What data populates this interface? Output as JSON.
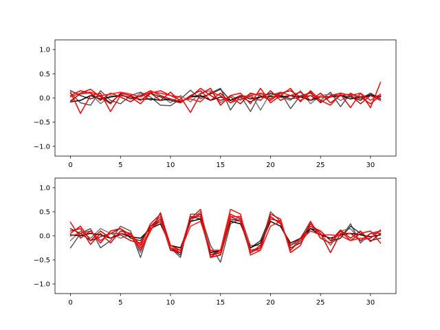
{
  "chart_data": [
    {
      "type": "line",
      "xlim": [
        -1.55,
        32.55
      ],
      "ylim": [
        -1.2,
        1.2
      ],
      "x_ticks": [
        0,
        5,
        10,
        15,
        20,
        25,
        30
      ],
      "y_ticks": [
        -1.0,
        -0.5,
        0.0,
        0.5,
        1.0
      ],
      "x_tick_labels": [
        "0",
        "5",
        "10",
        "15",
        "20",
        "25",
        "30"
      ],
      "y_tick_labels": [
        "−1.0",
        "−0.5",
        "0.0",
        "0.5",
        "1.0"
      ],
      "grid": false,
      "x": [
        0,
        1,
        2,
        3,
        4,
        5,
        6,
        7,
        8,
        9,
        10,
        11,
        12,
        13,
        14,
        15,
        16,
        17,
        18,
        19,
        20,
        21,
        22,
        23,
        24,
        25,
        26,
        27,
        28,
        29,
        30,
        31
      ],
      "series": [
        {
          "color": "#555555",
          "values": [
            0.1,
            -0.1,
            -0.15,
            0.15,
            -0.05,
            -0.12,
            0.05,
            0.12,
            0.02,
            -0.15,
            -0.16,
            -0.02,
            0.16,
            -0.02,
            0.1,
            0.2,
            -0.25,
            0.05,
            -0.28,
            0.1,
            0.05,
            0.12,
            -0.22,
            0.05,
            0.1,
            -0.05,
            0.12,
            -0.18,
            0.1,
            -0.02,
            0.1,
            -0.02
          ]
        },
        {
          "color": "#777777",
          "values": [
            -0.05,
            0.08,
            0.1,
            -0.12,
            0.05,
            0.02,
            -0.08,
            0.1,
            -0.05,
            0.05,
            -0.1,
            0.05,
            -0.08,
            0.1,
            0.15,
            -0.1,
            0.05,
            -0.05,
            0.1,
            -0.25,
            0.1,
            0.02,
            -0.05,
            0.15,
            -0.12,
            0.05,
            0.08,
            -0.05,
            0.05,
            -0.02,
            0.05,
            0.02
          ]
        },
        {
          "color": "#333333",
          "values": [
            0.15,
            0.05,
            -0.02,
            0.05,
            -0.1,
            0.08,
            -0.02,
            0.05,
            0.1,
            0.02,
            -0.05,
            -0.1,
            0.05,
            0.02,
            0.08,
            0.18,
            -0.05,
            0.02,
            -0.08,
            0.02,
            0.1,
            0.05,
            -0.02,
            0.02,
            0.05,
            -0.08,
            0.02,
            0.05,
            0.02,
            -0.05,
            0.08,
            -0.02
          ]
        },
        {
          "color": "#000000",
          "values": [
            -0.08,
            -0.05,
            0.05,
            -0.02,
            0.02,
            0.05,
            0.02,
            -0.03,
            -0.02,
            -0.05,
            -0.02,
            -0.08,
            0.02,
            0.05,
            -0.05,
            0.02,
            -0.05,
            0.05,
            -0.02,
            0.02,
            0.03,
            0.02,
            0.05,
            0.02,
            -0.05,
            0.02,
            0.03,
            0.05,
            -0.02,
            0.02,
            0.05,
            0.03
          ]
        },
        {
          "color": "#ff0000",
          "values": [
            0.12,
            -0.32,
            0.05,
            0.1,
            -0.28,
            0.05,
            0.02,
            -0.12,
            0.1,
            0.15,
            0.05,
            0.02,
            -0.3,
            0.08,
            0.2,
            -0.15,
            0.05,
            0.1,
            -0.12,
            0.2,
            -0.1,
            0.05,
            0.2,
            -0.08,
            0.15,
            -0.05,
            -0.15,
            0.08,
            -0.2,
            0.1,
            -0.2,
            0.32
          ]
        },
        {
          "color": "#ee0000",
          "values": [
            0.05,
            0.15,
            0.1,
            -0.05,
            0.1,
            0.02,
            -0.08,
            0.05,
            0.15,
            0.05,
            -0.02,
            -0.1,
            0.05,
            0.15,
            -0.05,
            0.1,
            -0.1,
            0.05,
            0.02,
            -0.05,
            0.15,
            -0.05,
            0.05,
            0.12,
            -0.05,
            0.1,
            -0.1,
            0.05,
            0.08,
            0.02,
            -0.12,
            0.05
          ]
        },
        {
          "color": "#dd0000",
          "values": [
            -0.08,
            0.1,
            0.18,
            0.02,
            -0.12,
            0.1,
            0.05,
            -0.05,
            0.1,
            -0.05,
            0.12,
            -0.08,
            0.02,
            0.2,
            0.05,
            -0.05,
            0.02,
            -0.12,
            0.1,
            0.05,
            -0.05,
            0.1,
            0.15,
            0.02,
            0.12,
            -0.1,
            0.05,
            0.1,
            0.05,
            -0.12,
            0.05,
            -0.05
          ]
        },
        {
          "color": "#ff1111",
          "values": [
            0.02,
            0.1,
            0.12,
            0.05,
            0.08,
            0.12,
            0.08,
            0.02,
            0.12,
            0.1,
            0.05,
            -0.05,
            -0.02,
            -0.08,
            0.12,
            0.05,
            -0.1,
            -0.02,
            0.05,
            0.1,
            -0.02,
            0.12,
            0.05,
            -0.05,
            0.05,
            0.02,
            0.02,
            0.1,
            0.05,
            0.1,
            -0.05,
            0.08
          ]
        }
      ]
    },
    {
      "type": "line",
      "xlim": [
        -1.55,
        32.55
      ],
      "ylim": [
        -1.2,
        1.2
      ],
      "x_ticks": [
        0,
        5,
        10,
        15,
        20,
        25,
        30
      ],
      "y_ticks": [
        -1.0,
        -0.5,
        0.0,
        0.5,
        1.0
      ],
      "x_tick_labels": [
        "0",
        "5",
        "10",
        "15",
        "20",
        "25",
        "30"
      ],
      "y_tick_labels": [
        "−1.0",
        "−0.5",
        "0.0",
        "0.5",
        "1.0"
      ],
      "grid": false,
      "x": [
        0,
        1,
        2,
        3,
        4,
        5,
        6,
        7,
        8,
        9,
        10,
        11,
        12,
        13,
        14,
        15,
        16,
        17,
        18,
        19,
        20,
        21,
        22,
        23,
        24,
        25,
        26,
        27,
        28,
        29,
        30,
        31
      ],
      "series": [
        {
          "color": "#555555",
          "values": [
            -0.25,
            0.05,
            0.15,
            -0.25,
            -0.1,
            0.2,
            0.1,
            -0.45,
            0.2,
            0.4,
            -0.25,
            -0.45,
            0.45,
            0.45,
            -0.2,
            -0.55,
            0.25,
            0.35,
            -0.3,
            -0.25,
            0.5,
            0.3,
            -0.3,
            -0.05,
            0.3,
            -0.05,
            -0.15,
            -0.05,
            0.25,
            -0.15,
            0.05,
            0.05
          ]
        },
        {
          "color": "#777777",
          "values": [
            -0.1,
            0.1,
            -0.05,
            0.15,
            0.05,
            -0.05,
            0.02,
            -0.35,
            0.15,
            0.35,
            -0.3,
            -0.3,
            0.3,
            0.5,
            -0.3,
            -0.4,
            0.3,
            0.4,
            -0.2,
            -0.2,
            0.3,
            0.2,
            -0.2,
            -0.1,
            0.2,
            0.05,
            -0.2,
            0.1,
            0.15,
            -0.1,
            -0.05,
            0.1
          ]
        },
        {
          "color": "#333333",
          "values": [
            0.15,
            0.05,
            -0.1,
            -0.02,
            0.05,
            0.15,
            -0.05,
            -0.1,
            0.2,
            0.3,
            -0.25,
            -0.4,
            0.4,
            0.35,
            -0.4,
            -0.3,
            0.4,
            0.3,
            -0.25,
            -0.1,
            0.4,
            0.25,
            -0.25,
            -0.15,
            0.15,
            0.1,
            -0.1,
            -0.05,
            0.2,
            0.05,
            -0.1,
            -0.05
          ]
        },
        {
          "color": "#000000",
          "values": [
            0.02,
            0.0,
            0.05,
            0.02,
            -0.05,
            0.05,
            -0.02,
            -0.05,
            0.15,
            0.25,
            -0.2,
            -0.25,
            0.3,
            0.35,
            -0.35,
            -0.3,
            0.3,
            0.25,
            -0.25,
            -0.15,
            0.3,
            0.2,
            -0.15,
            -0.05,
            0.15,
            0.02,
            -0.05,
            0.02,
            0.05,
            0.02,
            -0.02,
            0.02
          ]
        },
        {
          "color": "#ff0000",
          "values": [
            0.28,
            -0.05,
            0.1,
            -0.15,
            0.1,
            0.15,
            0.02,
            -0.3,
            0.1,
            0.48,
            -0.25,
            -0.35,
            0.35,
            0.55,
            -0.45,
            -0.3,
            0.55,
            0.45,
            -0.4,
            -0.3,
            0.45,
            0.35,
            -0.35,
            -0.2,
            0.3,
            -0.05,
            -0.15,
            0.1,
            -0.1,
            0.05,
            0.1,
            -0.15
          ]
        },
        {
          "color": "#ee0000",
          "values": [
            0.1,
            0.15,
            -0.18,
            0.05,
            -0.15,
            0.1,
            0.05,
            -0.2,
            0.25,
            0.45,
            -0.2,
            -0.3,
            0.4,
            0.4,
            -0.4,
            -0.35,
            0.45,
            0.35,
            -0.35,
            -0.2,
            0.35,
            0.3,
            -0.3,
            -0.1,
            0.25,
            0.05,
            -0.35,
            0.05,
            0.05,
            -0.1,
            0.05,
            0.1
          ]
        },
        {
          "color": "#dd0000",
          "values": [
            0.05,
            0.2,
            -0.1,
            0.1,
            -0.05,
            0.02,
            -0.1,
            -0.15,
            0.2,
            0.35,
            -0.3,
            -0.35,
            0.35,
            0.45,
            -0.45,
            -0.4,
            0.35,
            0.3,
            -0.35,
            -0.25,
            0.4,
            0.25,
            -0.2,
            -0.05,
            0.2,
            0.1,
            -0.1,
            0.12,
            -0.05,
            0.1,
            -0.12,
            0.05
          ]
        },
        {
          "color": "#ff1111",
          "values": [
            0.0,
            0.05,
            0.1,
            -0.1,
            0.05,
            0.05,
            0.02,
            -0.25,
            0.15,
            0.3,
            -0.25,
            -0.3,
            0.2,
            0.3,
            -0.3,
            -0.3,
            0.4,
            0.4,
            -0.3,
            -0.3,
            0.2,
            0.3,
            -0.3,
            -0.1,
            0.1,
            0.02,
            0.02,
            0.0,
            -0.1,
            -0.05,
            -0.05,
            0.12
          ]
        }
      ]
    }
  ]
}
